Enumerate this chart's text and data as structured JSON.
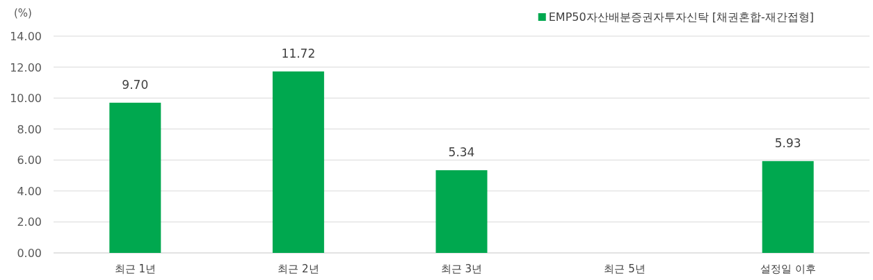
{
  "chart_data": {
    "type": "bar",
    "ylabel": "(%)",
    "categories": [
      "최근 1년",
      "최근 2년",
      "최근 3년",
      "최근 5년",
      "설정일 이후"
    ],
    "series": [
      {
        "name": "EMP50자산배분증권자투자신탁 [채권혼합-재간접형]",
        "color": "#00a84f",
        "values": [
          9.7,
          11.72,
          5.34,
          null,
          5.93
        ],
        "value_labels": [
          "9.70",
          "11.72",
          "5.34",
          null,
          "5.93"
        ]
      }
    ],
    "ylim": [
      0,
      14
    ],
    "yticks": [
      {
        "value": 0,
        "label": "0.00"
      },
      {
        "value": 2,
        "label": "2.00"
      },
      {
        "value": 4,
        "label": "4.00"
      },
      {
        "value": 6,
        "label": "6.00"
      },
      {
        "value": 8,
        "label": "8.00"
      },
      {
        "value": 10,
        "label": "10.00"
      },
      {
        "value": 12,
        "label": "12.00"
      },
      {
        "value": 14,
        "label": "14.00"
      }
    ],
    "grid": "y",
    "legend": "top right"
  }
}
